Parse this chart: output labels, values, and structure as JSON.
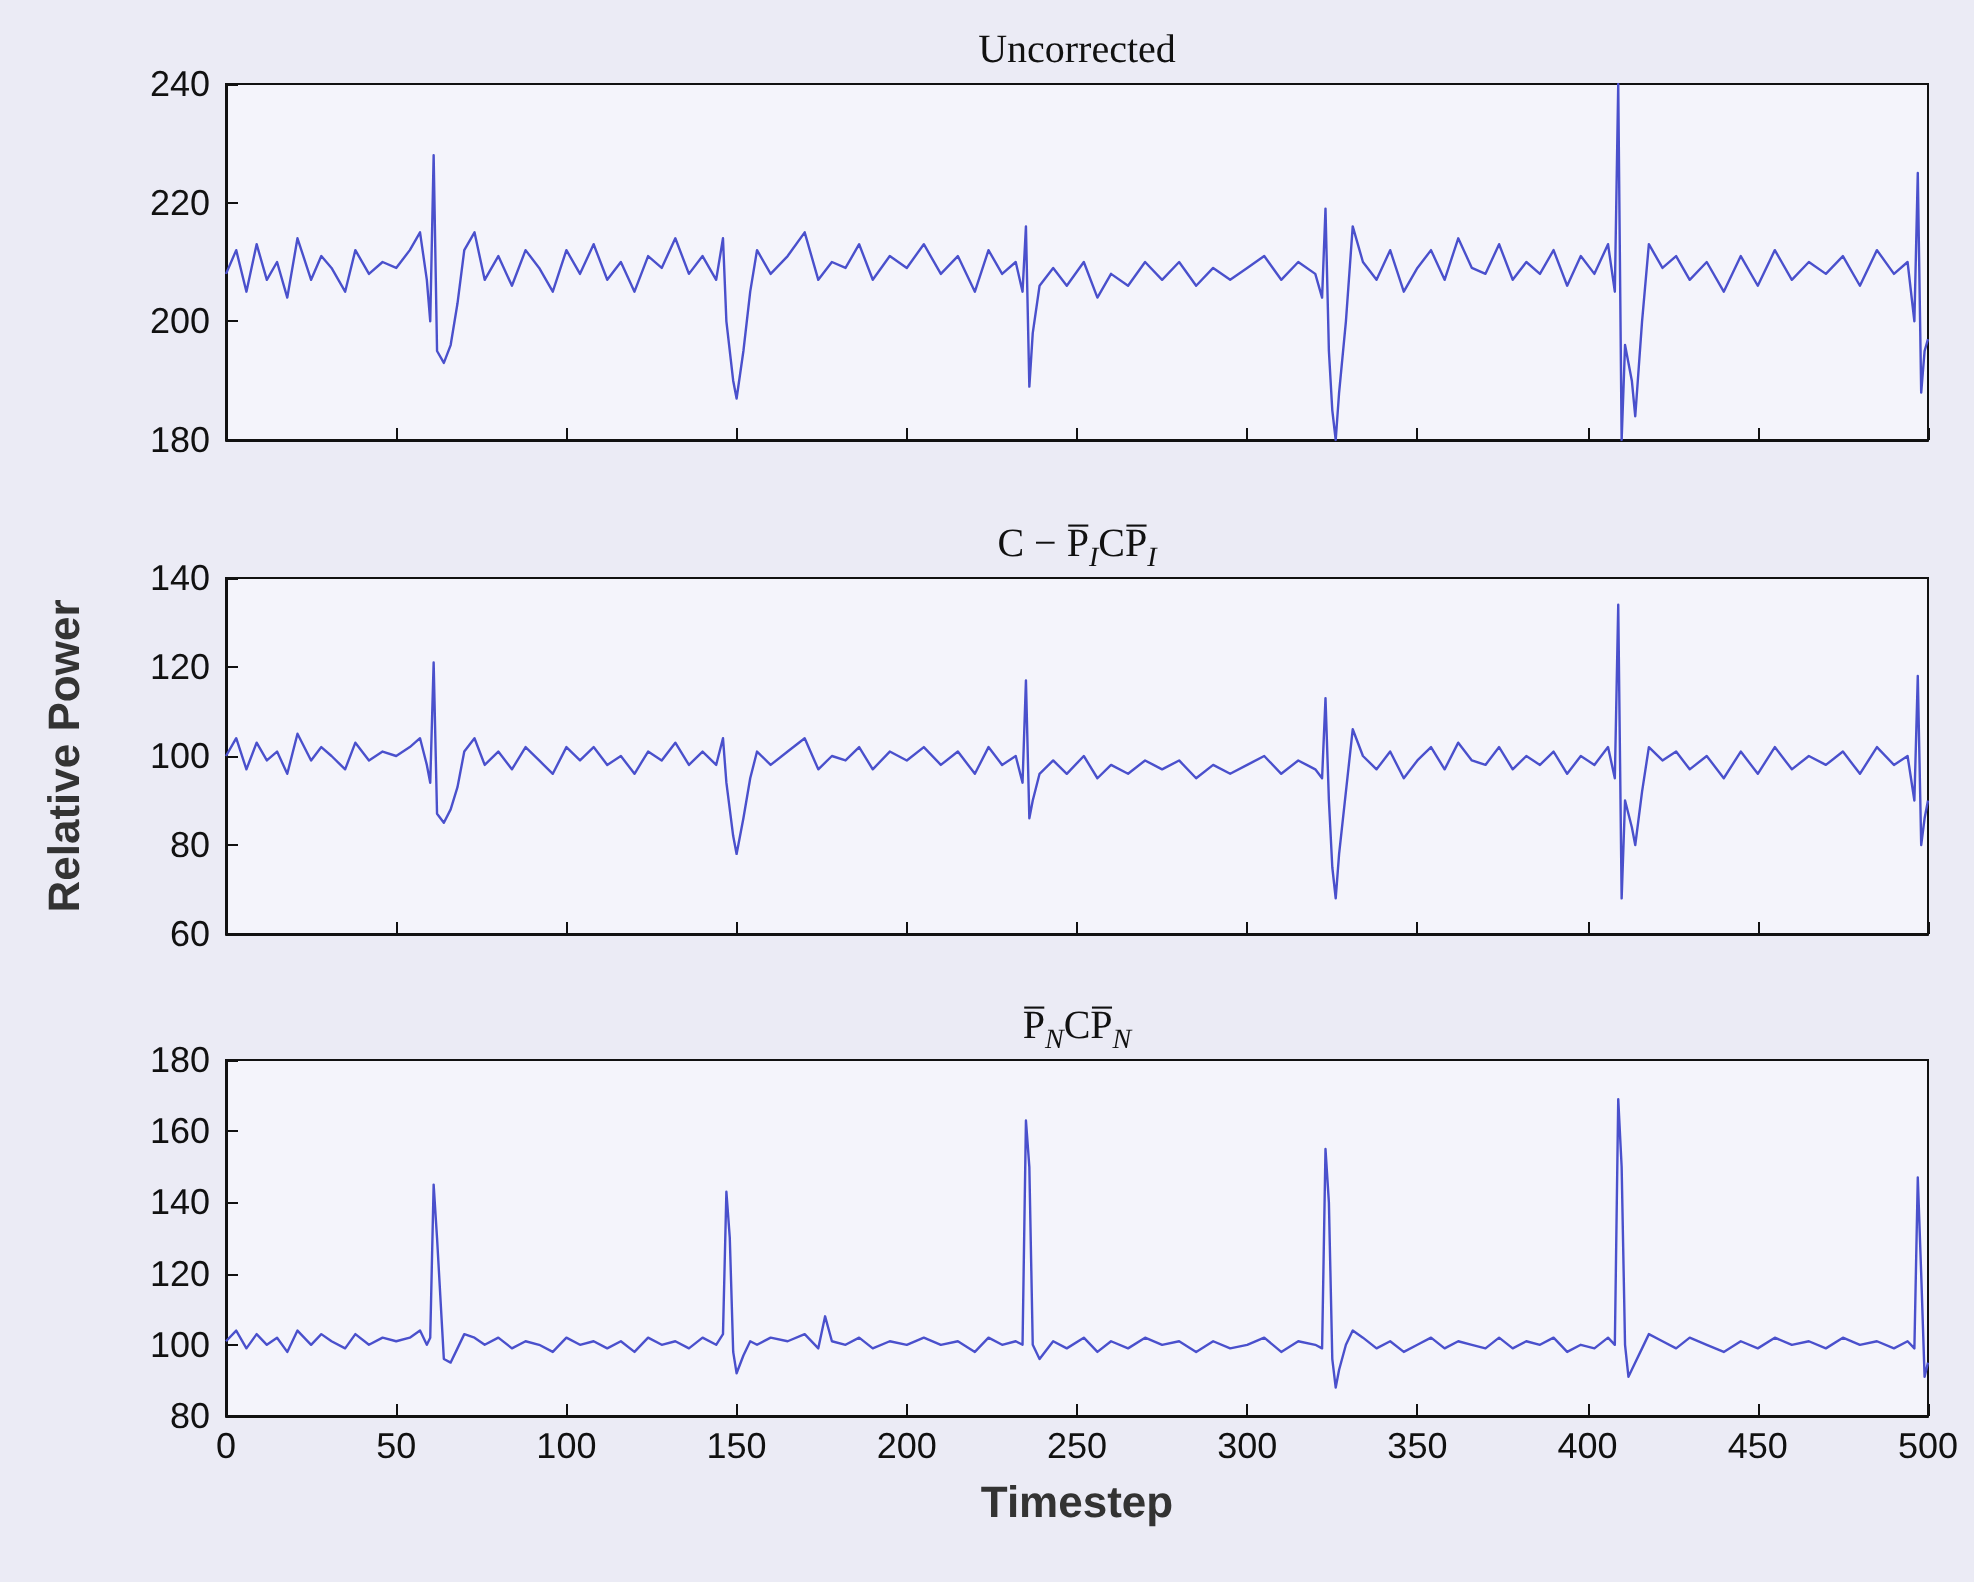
{
  "chart_data": [
    {
      "type": "line",
      "title": "Uncorrected",
      "xlim": [
        0,
        500
      ],
      "xticks": [
        0,
        50,
        100,
        150,
        200,
        250,
        300,
        350,
        400,
        450,
        500
      ],
      "ylim": [
        180,
        240
      ],
      "yticks": [
        180,
        200,
        220,
        240
      ],
      "tick_labels": "y",
      "color": "#4a50cc",
      "x": [
        0,
        3,
        6,
        9,
        12,
        15,
        18,
        21,
        25,
        28,
        31,
        35,
        38,
        42,
        46,
        50,
        54,
        57,
        59,
        60,
        61,
        62,
        64,
        66,
        68,
        70,
        73,
        76,
        80,
        84,
        88,
        92,
        96,
        100,
        104,
        108,
        112,
        116,
        120,
        124,
        128,
        132,
        136,
        140,
        144,
        146,
        147,
        149,
        150,
        152,
        154,
        156,
        160,
        165,
        170,
        174,
        178,
        182,
        186,
        190,
        195,
        200,
        205,
        210,
        215,
        220,
        224,
        228,
        232,
        234,
        235,
        236,
        237,
        239,
        243,
        247,
        252,
        256,
        260,
        265,
        270,
        275,
        280,
        285,
        290,
        295,
        300,
        305,
        310,
        315,
        320,
        322,
        323,
        324,
        325,
        326,
        327,
        329,
        331,
        334,
        338,
        342,
        346,
        350,
        354,
        358,
        362,
        366,
        370,
        374,
        378,
        382,
        386,
        390,
        394,
        398,
        402,
        406,
        408,
        409,
        410,
        411,
        413,
        414,
        416,
        418,
        422,
        426,
        430,
        435,
        440,
        445,
        450,
        455,
        460,
        465,
        470,
        475,
        480,
        485,
        490,
        494,
        496,
        497,
        498,
        499,
        500
      ],
      "values": [
        208,
        212,
        205,
        213,
        207,
        210,
        204,
        214,
        207,
        211,
        209,
        205,
        212,
        208,
        210,
        209,
        212,
        215,
        207,
        200,
        228,
        195,
        193,
        196,
        203,
        212,
        215,
        207,
        211,
        206,
        212,
        209,
        205,
        212,
        208,
        213,
        207,
        210,
        205,
        211,
        209,
        214,
        208,
        211,
        207,
        214,
        200,
        190,
        187,
        195,
        205,
        212,
        208,
        211,
        215,
        207,
        210,
        209,
        213,
        207,
        211,
        209,
        213,
        208,
        211,
        205,
        212,
        208,
        210,
        205,
        216,
        189,
        198,
        206,
        209,
        206,
        210,
        204,
        208,
        206,
        210,
        207,
        210,
        206,
        209,
        207,
        209,
        211,
        207,
        210,
        208,
        204,
        219,
        195,
        185,
        180,
        188,
        200,
        216,
        210,
        207,
        212,
        205,
        209,
        212,
        207,
        214,
        209,
        208,
        213,
        207,
        210,
        208,
        212,
        206,
        211,
        208,
        213,
        205,
        240,
        180,
        196,
        190,
        184,
        200,
        213,
        209,
        211,
        207,
        210,
        205,
        211,
        206,
        212,
        207,
        210,
        208,
        211,
        206,
        212,
        208,
        210,
        200,
        225,
        188,
        195,
        197
      ]
    },
    {
      "type": "line",
      "title": "C − P̅$_{I}$CP̅$_{I}$",
      "ylabel": "Relative Power",
      "xlim": [
        0,
        500
      ],
      "xticks": [
        0,
        50,
        100,
        150,
        200,
        250,
        300,
        350,
        400,
        450,
        500
      ],
      "ylim": [
        60,
        140
      ],
      "yticks": [
        60,
        80,
        100,
        120,
        140
      ],
      "tick_labels": "y",
      "color": "#4a50cc",
      "x": [
        0,
        3,
        6,
        9,
        12,
        15,
        18,
        21,
        25,
        28,
        31,
        35,
        38,
        42,
        46,
        50,
        54,
        57,
        59,
        60,
        61,
        62,
        64,
        66,
        68,
        70,
        73,
        76,
        80,
        84,
        88,
        92,
        96,
        100,
        104,
        108,
        112,
        116,
        120,
        124,
        128,
        132,
        136,
        140,
        144,
        146,
        147,
        149,
        150,
        152,
        154,
        156,
        160,
        165,
        170,
        174,
        178,
        182,
        186,
        190,
        195,
        200,
        205,
        210,
        215,
        220,
        224,
        228,
        232,
        234,
        235,
        236,
        237,
        239,
        243,
        247,
        252,
        256,
        260,
        265,
        270,
        275,
        280,
        285,
        290,
        295,
        300,
        305,
        310,
        315,
        320,
        322,
        323,
        324,
        325,
        326,
        327,
        329,
        331,
        334,
        338,
        342,
        346,
        350,
        354,
        358,
        362,
        366,
        370,
        374,
        378,
        382,
        386,
        390,
        394,
        398,
        402,
        406,
        408,
        409,
        410,
        411,
        413,
        414,
        416,
        418,
        422,
        426,
        430,
        435,
        440,
        445,
        450,
        455,
        460,
        465,
        470,
        475,
        480,
        485,
        490,
        494,
        496,
        497,
        498,
        499,
        500
      ],
      "values": [
        100,
        104,
        97,
        103,
        99,
        101,
        96,
        105,
        99,
        102,
        100,
        97,
        103,
        99,
        101,
        100,
        102,
        104,
        98,
        94,
        121,
        87,
        85,
        88,
        93,
        101,
        104,
        98,
        101,
        97,
        102,
        99,
        96,
        102,
        99,
        102,
        98,
        100,
        96,
        101,
        99,
        103,
        98,
        101,
        98,
        104,
        94,
        82,
        78,
        86,
        95,
        101,
        98,
        101,
        104,
        97,
        100,
        99,
        102,
        97,
        101,
        99,
        102,
        98,
        101,
        96,
        102,
        98,
        100,
        94,
        117,
        86,
        90,
        96,
        99,
        96,
        100,
        95,
        98,
        96,
        99,
        97,
        99,
        95,
        98,
        96,
        98,
        100,
        96,
        99,
        97,
        95,
        113,
        90,
        75,
        68,
        78,
        92,
        106,
        100,
        97,
        101,
        95,
        99,
        102,
        97,
        103,
        99,
        98,
        102,
        97,
        100,
        98,
        101,
        96,
        100,
        98,
        102,
        95,
        134,
        68,
        90,
        84,
        80,
        92,
        102,
        99,
        101,
        97,
        100,
        95,
        101,
        96,
        102,
        97,
        100,
        98,
        101,
        96,
        102,
        98,
        100,
        90,
        118,
        80,
        86,
        90
      ]
    },
    {
      "type": "line",
      "title": "P̅$_{N}$CP̅$_{N}$",
      "xlabel": "Timestep",
      "xlim": [
        0,
        500
      ],
      "xticks": [
        0,
        50,
        100,
        150,
        200,
        250,
        300,
        350,
        400,
        450,
        500
      ],
      "ylim": [
        80,
        180
      ],
      "yticks": [
        80,
        100,
        120,
        140,
        160,
        180
      ],
      "color": "#4a50cc",
      "x": [
        0,
        3,
        6,
        9,
        12,
        15,
        18,
        21,
        25,
        28,
        31,
        35,
        38,
        42,
        46,
        50,
        54,
        57,
        59,
        60,
        61,
        62,
        64,
        66,
        68,
        70,
        73,
        76,
        80,
        84,
        88,
        92,
        96,
        100,
        104,
        108,
        112,
        116,
        120,
        124,
        128,
        132,
        136,
        140,
        144,
        146,
        147,
        148,
        149,
        150,
        152,
        154,
        156,
        160,
        165,
        170,
        174,
        176,
        178,
        182,
        186,
        190,
        195,
        200,
        205,
        210,
        215,
        220,
        224,
        228,
        232,
        234,
        235,
        236,
        237,
        239,
        243,
        247,
        252,
        256,
        260,
        265,
        270,
        275,
        280,
        285,
        290,
        295,
        300,
        305,
        310,
        315,
        320,
        322,
        323,
        324,
        325,
        326,
        327,
        329,
        331,
        334,
        338,
        342,
        346,
        350,
        354,
        358,
        362,
        366,
        370,
        374,
        378,
        382,
        386,
        390,
        394,
        398,
        402,
        406,
        408,
        409,
        410,
        411,
        412,
        414,
        416,
        418,
        422,
        426,
        430,
        435,
        440,
        445,
        450,
        455,
        460,
        465,
        470,
        475,
        480,
        485,
        490,
        494,
        496,
        497,
        498,
        499,
        500
      ],
      "values": [
        101,
        104,
        99,
        103,
        100,
        102,
        98,
        104,
        100,
        103,
        101,
        99,
        103,
        100,
        102,
        101,
        102,
        104,
        100,
        102,
        145,
        130,
        96,
        95,
        99,
        103,
        102,
        100,
        102,
        99,
        101,
        100,
        98,
        102,
        100,
        101,
        99,
        101,
        98,
        102,
        100,
        101,
        99,
        102,
        100,
        103,
        143,
        130,
        98,
        92,
        97,
        101,
        100,
        102,
        101,
        103,
        99,
        108,
        101,
        100,
        102,
        99,
        101,
        100,
        102,
        100,
        101,
        98,
        102,
        100,
        101,
        100,
        163,
        150,
        100,
        96,
        101,
        99,
        102,
        98,
        101,
        99,
        102,
        100,
        101,
        98,
        101,
        99,
        100,
        102,
        98,
        101,
        100,
        99,
        155,
        140,
        96,
        88,
        93,
        100,
        104,
        102,
        99,
        101,
        98,
        100,
        102,
        99,
        101,
        100,
        99,
        102,
        99,
        101,
        100,
        102,
        98,
        100,
        99,
        102,
        100,
        169,
        150,
        100,
        91,
        95,
        99,
        103,
        101,
        99,
        102,
        100,
        98,
        101,
        99,
        102,
        100,
        101,
        99,
        102,
        100,
        101,
        99,
        101,
        99,
        147,
        120,
        91,
        95
      ]
    }
  ]
}
